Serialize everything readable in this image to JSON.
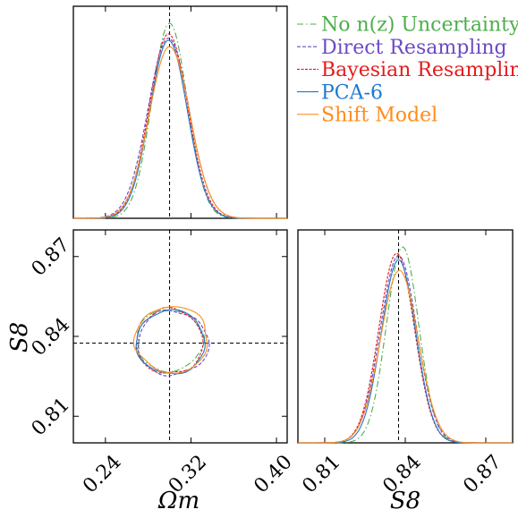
{
  "figure": {
    "x_axis_label_left": "Ωm",
    "x_axis_label_right": "S8",
    "y_axis_label": "S8"
  },
  "chart_data": {
    "type": "corner",
    "parameters": [
      {
        "name": "Ωm",
        "range": [
          0.21,
          0.41
        ],
        "ticks": [
          0.24,
          0.32,
          0.4
        ],
        "tick_labels": [
          "0.24",
          "0.32",
          "0.40"
        ],
        "fiducial": 0.3
      },
      {
        "name": "S8",
        "range": [
          0.8,
          0.88
        ],
        "ticks": [
          0.81,
          0.84,
          0.87
        ],
        "tick_labels": [
          "0.81",
          "0.84",
          "0.87"
        ],
        "fiducial": 0.8375
      }
    ],
    "legend": {
      "placement": "top-right (in empty upper-right panel)"
    },
    "series": [
      {
        "name": "No n(z) Uncertainty",
        "color": "#4daf4a",
        "dash": "dashdot",
        "omega_m": {
          "mean": 0.3,
          "sigma": 0.0165,
          "peak": 0.92
        },
        "s8": {
          "mean": 0.839,
          "sigma": 0.006,
          "peak": 0.92
        },
        "contour": {
          "center": [
            0.3,
            0.8385
          ],
          "radii": [
            0.031,
            0.0115
          ],
          "wobble": 0.05,
          "seed": 1
        }
      },
      {
        "name": "Direct Resampling",
        "color": "#6a4bc4",
        "dash": "dash",
        "omega_m": {
          "mean": 0.299,
          "sigma": 0.0192,
          "peak": 0.85
        },
        "s8": {
          "mean": 0.8375,
          "sigma": 0.0068,
          "peak": 0.88
        },
        "contour": {
          "center": [
            0.303,
            0.8375
          ],
          "radii": [
            0.033,
            0.012
          ],
          "wobble": 0.06,
          "seed": 2
        }
      },
      {
        "name": "Bayesian Resampling",
        "color": "#e41a1c",
        "dash": "dashfine",
        "omega_m": {
          "mean": 0.299,
          "sigma": 0.018,
          "peak": 0.87
        },
        "s8": {
          "mean": 0.8368,
          "sigma": 0.0066,
          "peak": 0.89
        },
        "contour": {
          "center": [
            0.3,
            0.838
          ],
          "radii": [
            0.031,
            0.0122
          ],
          "wobble": 0.05,
          "seed": 3
        }
      },
      {
        "name": "PCA-6",
        "color": "#1f78d1",
        "dash": "solid",
        "omega_m": {
          "mean": 0.299,
          "sigma": 0.0176,
          "peak": 0.84
        },
        "s8": {
          "mean": 0.8375,
          "sigma": 0.0064,
          "peak": 0.86
        },
        "contour": {
          "center": [
            0.301,
            0.8378
          ],
          "radii": [
            0.032,
            0.012
          ],
          "wobble": 0.04,
          "seed": 4
        }
      },
      {
        "name": "Shift Model",
        "color": "#ff8c1a",
        "dash": "solid",
        "omega_m": {
          "mean": 0.3,
          "sigma": 0.019,
          "peak": 0.81
        },
        "s8": {
          "mean": 0.8378,
          "sigma": 0.007,
          "peak": 0.81
        },
        "contour": {
          "center": [
            0.302,
            0.8388
          ],
          "radii": [
            0.034,
            0.0125
          ],
          "wobble": 0.05,
          "seed": 5
        }
      }
    ]
  }
}
